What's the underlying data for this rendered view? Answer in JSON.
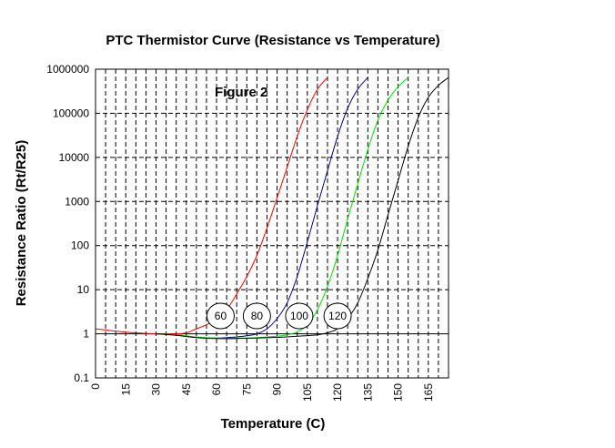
{
  "chart_data": {
    "type": "line",
    "title": "PTC  Thermistor Curve  (Resistance vs Temperature)",
    "annotation": "Figure  2",
    "xlabel": "Temperature (C)",
    "ylabel": "Resistance Ratio (Rt/R25)",
    "xlim": [
      0,
      175
    ],
    "ylim": [
      0.1,
      1000000
    ],
    "yscale": "log",
    "x_ticks": [
      "0",
      "15",
      "30",
      "45",
      "60",
      "75",
      "90",
      "105",
      "120",
      "135",
      "150",
      "165"
    ],
    "y_ticks": [
      "0.1",
      "1",
      "10",
      "100",
      "1000",
      "10000",
      "100000",
      "1000000"
    ],
    "grid": "dashed vertical every 5 C, dashed horizontal at each decade",
    "legend": "none",
    "labels": [
      "60",
      "80",
      "100",
      "120"
    ],
    "series": [
      {
        "color": "#ff0000",
        "x": [
          0,
          10,
          20,
          30,
          40,
          45,
          50,
          55,
          60,
          65,
          70,
          75,
          80,
          85,
          90,
          95,
          100,
          105,
          110,
          115
        ],
        "y": [
          1.3,
          1.15,
          1.05,
          1.0,
          1.0,
          1.05,
          1.3,
          1.6,
          2.2,
          3.5,
          8,
          20,
          60,
          250,
          1200,
          6000,
          30000,
          120000,
          350000,
          650000
        ]
      },
      {
        "color": "#000080",
        "x": [
          30,
          40,
          45,
          50,
          55,
          60,
          65,
          70,
          75,
          80,
          85,
          90,
          95,
          100,
          105,
          110,
          115,
          120,
          125,
          130,
          135
        ],
        "y": [
          1.0,
          0.95,
          0.88,
          0.83,
          0.8,
          0.8,
          0.82,
          0.85,
          0.9,
          1.0,
          1.3,
          2.2,
          5,
          20,
          120,
          800,
          5000,
          30000,
          130000,
          350000,
          650000
        ]
      },
      {
        "color": "#00e000",
        "x": [
          30,
          40,
          45,
          50,
          60,
          70,
          80,
          90,
          95,
          100,
          105,
          110,
          115,
          120,
          125,
          130,
          135,
          140,
          145,
          150,
          155
        ],
        "y": [
          1.0,
          0.95,
          0.9,
          0.85,
          0.8,
          0.8,
          0.82,
          0.88,
          0.95,
          1.1,
          1.6,
          3.5,
          12,
          60,
          400,
          2500,
          15000,
          70000,
          200000,
          400000,
          650000
        ]
      },
      {
        "color": "#000000",
        "x": [
          30,
          40,
          50,
          60,
          70,
          80,
          90,
          100,
          110,
          115,
          120,
          125,
          130,
          135,
          140,
          145,
          150,
          155,
          160,
          165,
          170,
          175
        ],
        "y": [
          1.0,
          0.92,
          0.82,
          0.78,
          0.78,
          0.8,
          0.83,
          0.88,
          0.95,
          1.05,
          1.3,
          2.2,
          5,
          18,
          80,
          500,
          3000,
          18000,
          80000,
          230000,
          430000,
          650000
        ]
      }
    ]
  }
}
